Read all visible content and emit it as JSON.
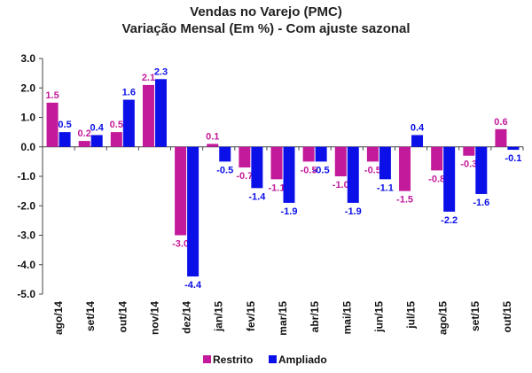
{
  "chart_data": {
    "type": "bar",
    "title": "Vendas no Varejo (PMC)",
    "subtitle": "Variação Mensal (Em %) - Com ajuste sazonal",
    "categories": [
      "ago/14",
      "set/14",
      "out/14",
      "nov/14",
      "dez/14",
      "jan/15",
      "fev/15",
      "mar/15",
      "abr/15",
      "mai/15",
      "jun/15",
      "jul/15",
      "ago/15",
      "set/15",
      "out/15"
    ],
    "series": [
      {
        "name": "Restrito",
        "color": "#c21a9a",
        "values": [
          1.5,
          0.2,
          0.5,
          2.1,
          -3.0,
          0.1,
          -0.7,
          -1.1,
          -0.5,
          -1.0,
          -0.5,
          -1.5,
          -0.8,
          -0.3,
          0.6
        ],
        "labels": [
          "1.5",
          "0.2",
          "0.5",
          "2.1",
          "-3.0",
          "0.1",
          "-0.7",
          "-1.1",
          "-0.5",
          "-1.0",
          "-0.5",
          "-1.5",
          "-0.8",
          "-0.3",
          "0.6"
        ]
      },
      {
        "name": "Ampliado",
        "color": "#0b10e8",
        "values": [
          0.5,
          0.4,
          1.6,
          2.3,
          -4.4,
          -0.5,
          -1.4,
          -1.9,
          -0.5,
          -1.9,
          -1.1,
          0.4,
          -2.2,
          -1.6,
          -0.1
        ],
        "labels": [
          "0.5",
          "0.4",
          "1.6",
          "2.3",
          "-4.4",
          "-0.5",
          "-1.4",
          "-1.9",
          "-0.5",
          "-1.9",
          "-1.1",
          "0.4",
          "-2.2",
          "-1.6",
          "-0.1"
        ]
      }
    ],
    "yticks": [
      "3.0",
      "2.0",
      "1.0",
      "0.0",
      "-1.0",
      "-2.0",
      "-3.0",
      "-4.0",
      "-5.0"
    ],
    "ylim": [
      -5,
      3
    ],
    "legend_position": "bottom",
    "grid": false
  }
}
